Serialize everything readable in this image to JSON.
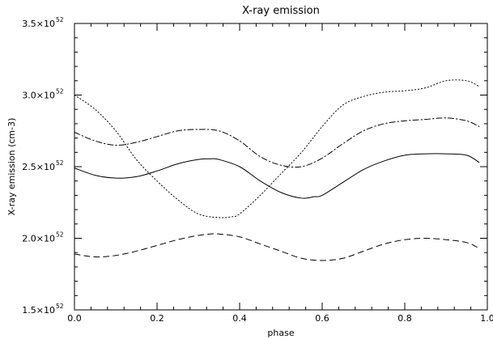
{
  "chart_data": {
    "type": "line",
    "title": "X-ray emission",
    "xlabel": "phase",
    "ylabel": "X-ray emission (cm-3)",
    "xlim": [
      0.0,
      1.0
    ],
    "ylim": [
      1.5e+52,
      3.5e+52
    ],
    "grid": false,
    "x_ticks": [
      {
        "value": 0.0,
        "label": "0.0"
      },
      {
        "value": 0.2,
        "label": "0.2"
      },
      {
        "value": 0.4,
        "label": "0.4"
      },
      {
        "value": 0.6,
        "label": "0.6"
      },
      {
        "value": 0.8,
        "label": "0.8"
      },
      {
        "value": 1.0,
        "label": "1.0"
      }
    ],
    "y_ticks": [
      {
        "value": 1.5e+52,
        "mantissa": "1.5×10",
        "exponent": "52"
      },
      {
        "value": 2e+52,
        "mantissa": "2.0×10",
        "exponent": "52"
      },
      {
        "value": 2.5e+52,
        "mantissa": "2.5×10",
        "exponent": "52"
      },
      {
        "value": 3e+52,
        "mantissa": "3.0×10",
        "exponent": "52"
      },
      {
        "value": 3.5e+52,
        "mantissa": "3.5×10",
        "exponent": "52"
      }
    ],
    "series": [
      {
        "style": "solid",
        "x": [
          0.0,
          0.05,
          0.1,
          0.15,
          0.2,
          0.25,
          0.3,
          0.33,
          0.35,
          0.4,
          0.45,
          0.5,
          0.55,
          0.58,
          0.6,
          0.65,
          0.7,
          0.75,
          0.8,
          0.85,
          0.9,
          0.95,
          0.98
        ],
        "y": [
          2.49e+52,
          2.44e+52,
          2.42e+52,
          2.43e+52,
          2.47e+52,
          2.52e+52,
          2.55e+52,
          2.555e+52,
          2.55e+52,
          2.5e+52,
          2.4e+52,
          2.32e+52,
          2.28e+52,
          2.29e+52,
          2.3e+52,
          2.39e+52,
          2.48e+52,
          2.54e+52,
          2.58e+52,
          2.59e+52,
          2.59e+52,
          2.58e+52,
          2.53e+52
        ]
      },
      {
        "style": "dotted",
        "x": [
          0.0,
          0.05,
          0.1,
          0.15,
          0.2,
          0.25,
          0.3,
          0.35,
          0.38,
          0.4,
          0.45,
          0.5,
          0.55,
          0.6,
          0.65,
          0.7,
          0.75,
          0.8,
          0.85,
          0.9,
          0.95,
          0.98
        ],
        "y": [
          3e+52,
          2.9e+52,
          2.75e+52,
          2.55e+52,
          2.4e+52,
          2.27e+52,
          2.17e+52,
          2.145e+52,
          2.15e+52,
          2.17e+52,
          2.3e+52,
          2.45e+52,
          2.6e+52,
          2.78e+52,
          2.93e+52,
          2.99e+52,
          3.02e+52,
          3.03e+52,
          3.05e+52,
          3.1e+52,
          3.1e+52,
          3.06e+52
        ]
      },
      {
        "style": "dashdot",
        "x": [
          0.0,
          0.05,
          0.1,
          0.15,
          0.2,
          0.25,
          0.3,
          0.35,
          0.4,
          0.45,
          0.5,
          0.55,
          0.6,
          0.65,
          0.7,
          0.75,
          0.8,
          0.85,
          0.9,
          0.95,
          0.98
        ],
        "y": [
          2.74e+52,
          2.68e+52,
          2.65e+52,
          2.67e+52,
          2.71e+52,
          2.75e+52,
          2.76e+52,
          2.75e+52,
          2.68e+52,
          2.57e+52,
          2.51e+52,
          2.5e+52,
          2.56e+52,
          2.66e+52,
          2.75e+52,
          2.8e+52,
          2.82e+52,
          2.83e+52,
          2.84e+52,
          2.82e+52,
          2.78e+52
        ]
      },
      {
        "style": "dashed",
        "x": [
          0.0,
          0.05,
          0.1,
          0.15,
          0.2,
          0.25,
          0.3,
          0.33,
          0.35,
          0.4,
          0.45,
          0.5,
          0.55,
          0.6,
          0.65,
          0.7,
          0.75,
          0.8,
          0.85,
          0.9,
          0.95,
          0.98
        ],
        "y": [
          1.89e+52,
          1.87e+52,
          1.88e+52,
          1.91e+52,
          1.95e+52,
          1.99e+52,
          2.02e+52,
          2.03e+52,
          2.03e+52,
          2.01e+52,
          1.96e+52,
          1.91e+52,
          1.86e+52,
          1.845e+52,
          1.86e+52,
          1.91e+52,
          1.96e+52,
          1.99e+52,
          2e+52,
          1.99e+52,
          1.97e+52,
          1.93e+52
        ]
      }
    ]
  }
}
